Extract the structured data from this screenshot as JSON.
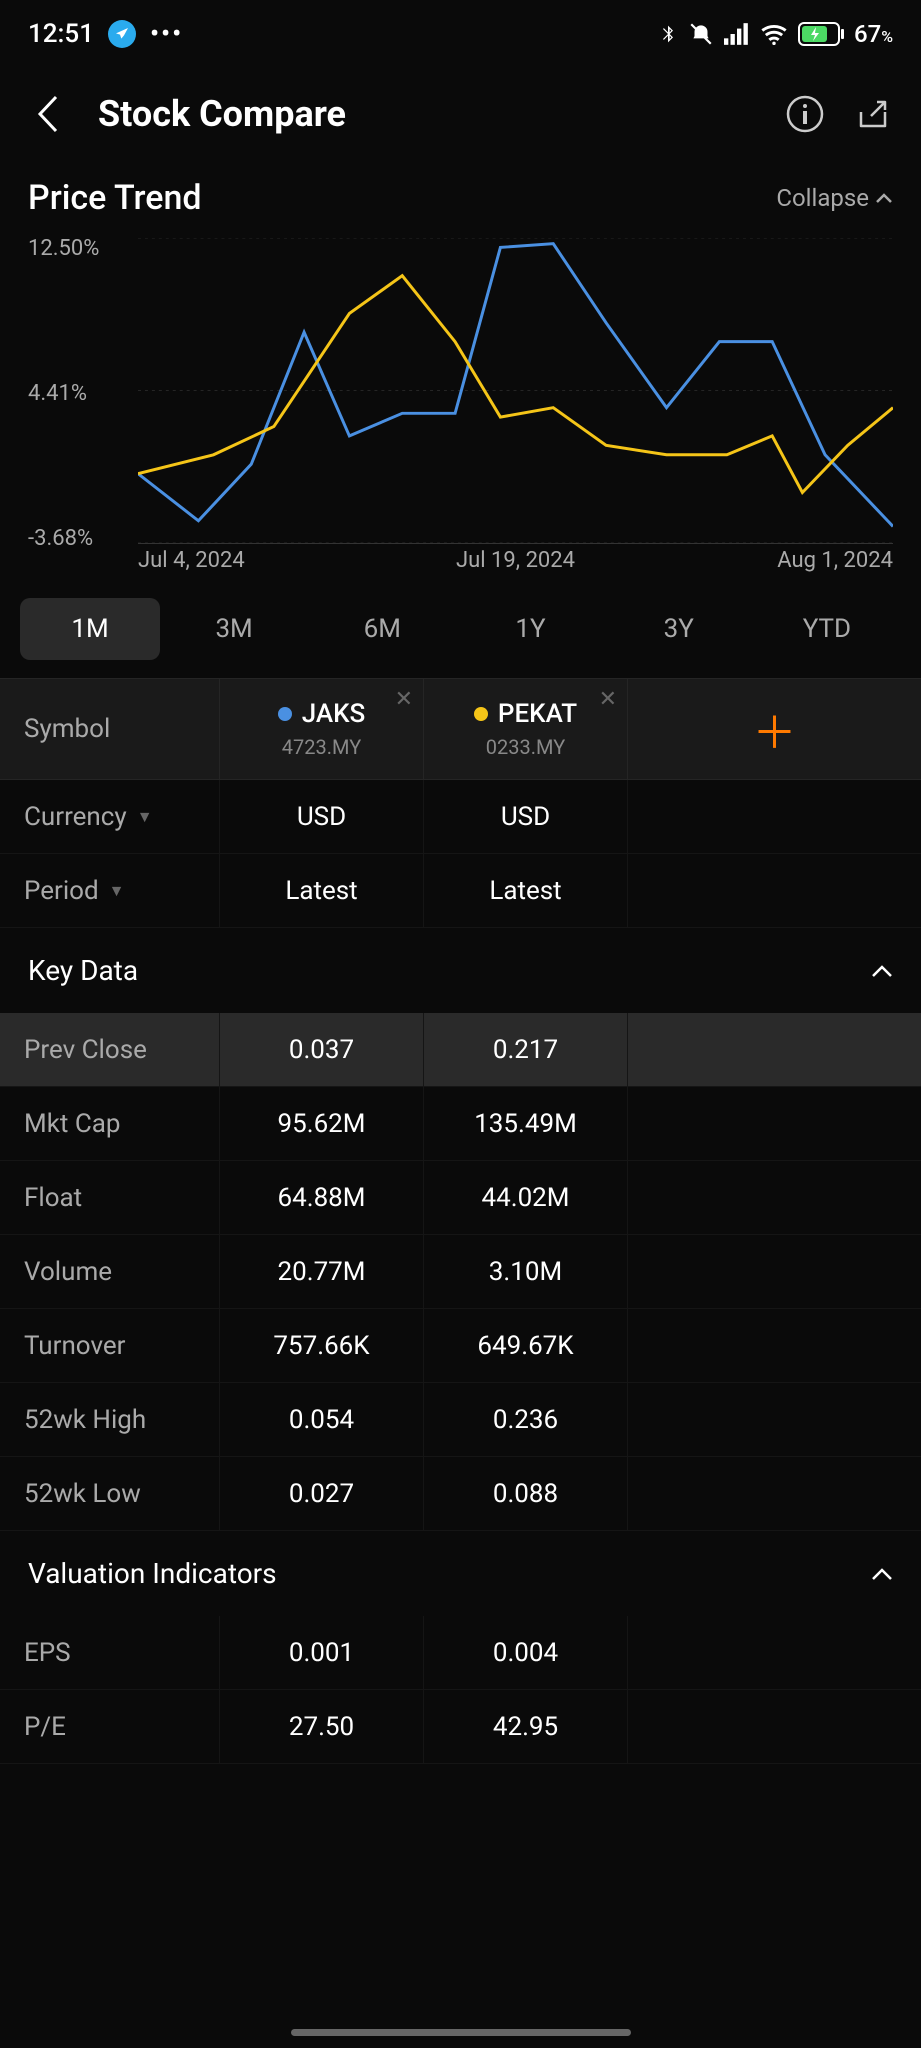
{
  "status": {
    "time": "12:51",
    "battery": "67"
  },
  "header": {
    "title": "Stock Compare"
  },
  "price_trend": {
    "title": "Price Trend",
    "collapse_label": "Collapse",
    "y_labels": [
      "12.50%",
      "4.41%",
      "-3.68%"
    ],
    "x_labels": [
      "Jul 4, 2024",
      "Jul 19, 2024",
      "Aug 1, 2024"
    ],
    "ylim": [
      -3.68,
      12.5
    ],
    "grid_color": "#252525",
    "series": [
      {
        "name": "JAKS",
        "color": "#4a90e2",
        "points": [
          {
            "x": 0.0,
            "y": 0.0
          },
          {
            "x": 0.08,
            "y": -2.5
          },
          {
            "x": 0.15,
            "y": 0.5
          },
          {
            "x": 0.22,
            "y": 7.5
          },
          {
            "x": 0.28,
            "y": 2.0
          },
          {
            "x": 0.35,
            "y": 3.2
          },
          {
            "x": 0.42,
            "y": 3.2
          },
          {
            "x": 0.48,
            "y": 12.0
          },
          {
            "x": 0.55,
            "y": 12.2
          },
          {
            "x": 0.62,
            "y": 8.0
          },
          {
            "x": 0.7,
            "y": 3.5
          },
          {
            "x": 0.77,
            "y": 7.0
          },
          {
            "x": 0.84,
            "y": 7.0
          },
          {
            "x": 0.91,
            "y": 1.0
          },
          {
            "x": 1.0,
            "y": -2.8
          }
        ]
      },
      {
        "name": "PEKAT",
        "color": "#f5c518",
        "points": [
          {
            "x": 0.0,
            "y": 0.0
          },
          {
            "x": 0.1,
            "y": 1.0
          },
          {
            "x": 0.18,
            "y": 2.5
          },
          {
            "x": 0.28,
            "y": 8.5
          },
          {
            "x": 0.35,
            "y": 10.5
          },
          {
            "x": 0.42,
            "y": 7.0
          },
          {
            "x": 0.48,
            "y": 3.0
          },
          {
            "x": 0.55,
            "y": 3.5
          },
          {
            "x": 0.62,
            "y": 1.5
          },
          {
            "x": 0.7,
            "y": 1.0
          },
          {
            "x": 0.78,
            "y": 1.0
          },
          {
            "x": 0.84,
            "y": 2.0
          },
          {
            "x": 0.88,
            "y": -1.0
          },
          {
            "x": 0.94,
            "y": 1.5
          },
          {
            "x": 1.0,
            "y": 3.5
          }
        ]
      }
    ],
    "ranges": [
      "1M",
      "3M",
      "6M",
      "1Y",
      "3Y",
      "YTD"
    ],
    "active_range": "1M"
  },
  "symbols": {
    "label": "Symbol",
    "items": [
      {
        "ticker": "JAKS",
        "code": "4723.MY",
        "dot_color": "#4a90e2"
      },
      {
        "ticker": "PEKAT",
        "code": "0233.MY",
        "dot_color": "#f5c518"
      }
    ]
  },
  "settings": {
    "currency_label": "Currency",
    "currency_values": [
      "USD",
      "USD"
    ],
    "period_label": "Period",
    "period_values": [
      "Latest",
      "Latest"
    ]
  },
  "key_data": {
    "title": "Key Data",
    "rows": [
      {
        "label": "Prev Close",
        "values": [
          "0.037",
          "0.217"
        ],
        "highlight": true
      },
      {
        "label": "Mkt Cap",
        "values": [
          "95.62M",
          "135.49M"
        ]
      },
      {
        "label": "Float",
        "values": [
          "64.88M",
          "44.02M"
        ]
      },
      {
        "label": "Volume",
        "values": [
          "20.77M",
          "3.10M"
        ]
      },
      {
        "label": "Turnover",
        "values": [
          "757.66K",
          "649.67K"
        ]
      },
      {
        "label": "52wk High",
        "values": [
          "0.054",
          "0.236"
        ]
      },
      {
        "label": "52wk Low",
        "values": [
          "0.027",
          "0.088"
        ]
      }
    ]
  },
  "valuation": {
    "title": "Valuation Indicators",
    "rows": [
      {
        "label": "EPS",
        "values": [
          "0.001",
          "0.004"
        ]
      },
      {
        "label": "P/E",
        "values": [
          "27.50",
          "42.95"
        ]
      }
    ]
  }
}
